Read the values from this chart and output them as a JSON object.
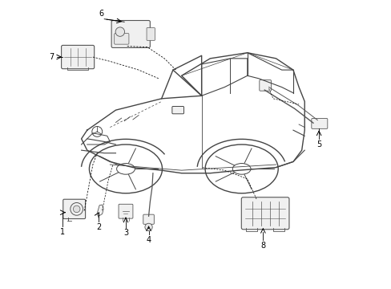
{
  "title": "",
  "background_color": "#ffffff",
  "line_color": "#333333",
  "label_color": "#000000",
  "figsize": [
    4.89,
    3.6
  ],
  "dpi": 100,
  "arrow_color": "#000000",
  "car_line_color": "#444444",
  "part_line_color": "#555555"
}
